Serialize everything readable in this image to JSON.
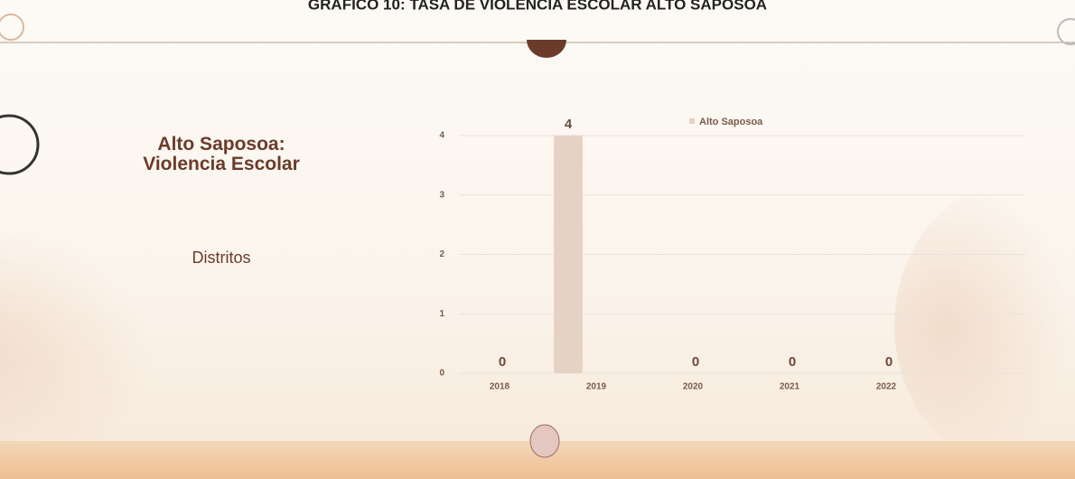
{
  "header": {
    "title": "GRAFICO 10: TASA DE VIOLENCIA ESCOLAR ALTO SAPOSOA"
  },
  "panel": {
    "heading": "Alto Saposoa: Violencia Escolar",
    "subheading": "Distritos"
  },
  "chart_data": {
    "type": "bar",
    "categories": [
      "2018",
      "2019",
      "2020",
      "2021",
      "2022"
    ],
    "series": [
      {
        "name": "Alto Saposoa",
        "color": "#e6d2c4",
        "values": [
          0,
          4,
          0,
          0,
          0
        ]
      }
    ],
    "ylim": [
      0,
      4
    ],
    "yticks": [
      0,
      1,
      2,
      3,
      4
    ],
    "grid": true,
    "legend": "top",
    "data_labels": true
  }
}
